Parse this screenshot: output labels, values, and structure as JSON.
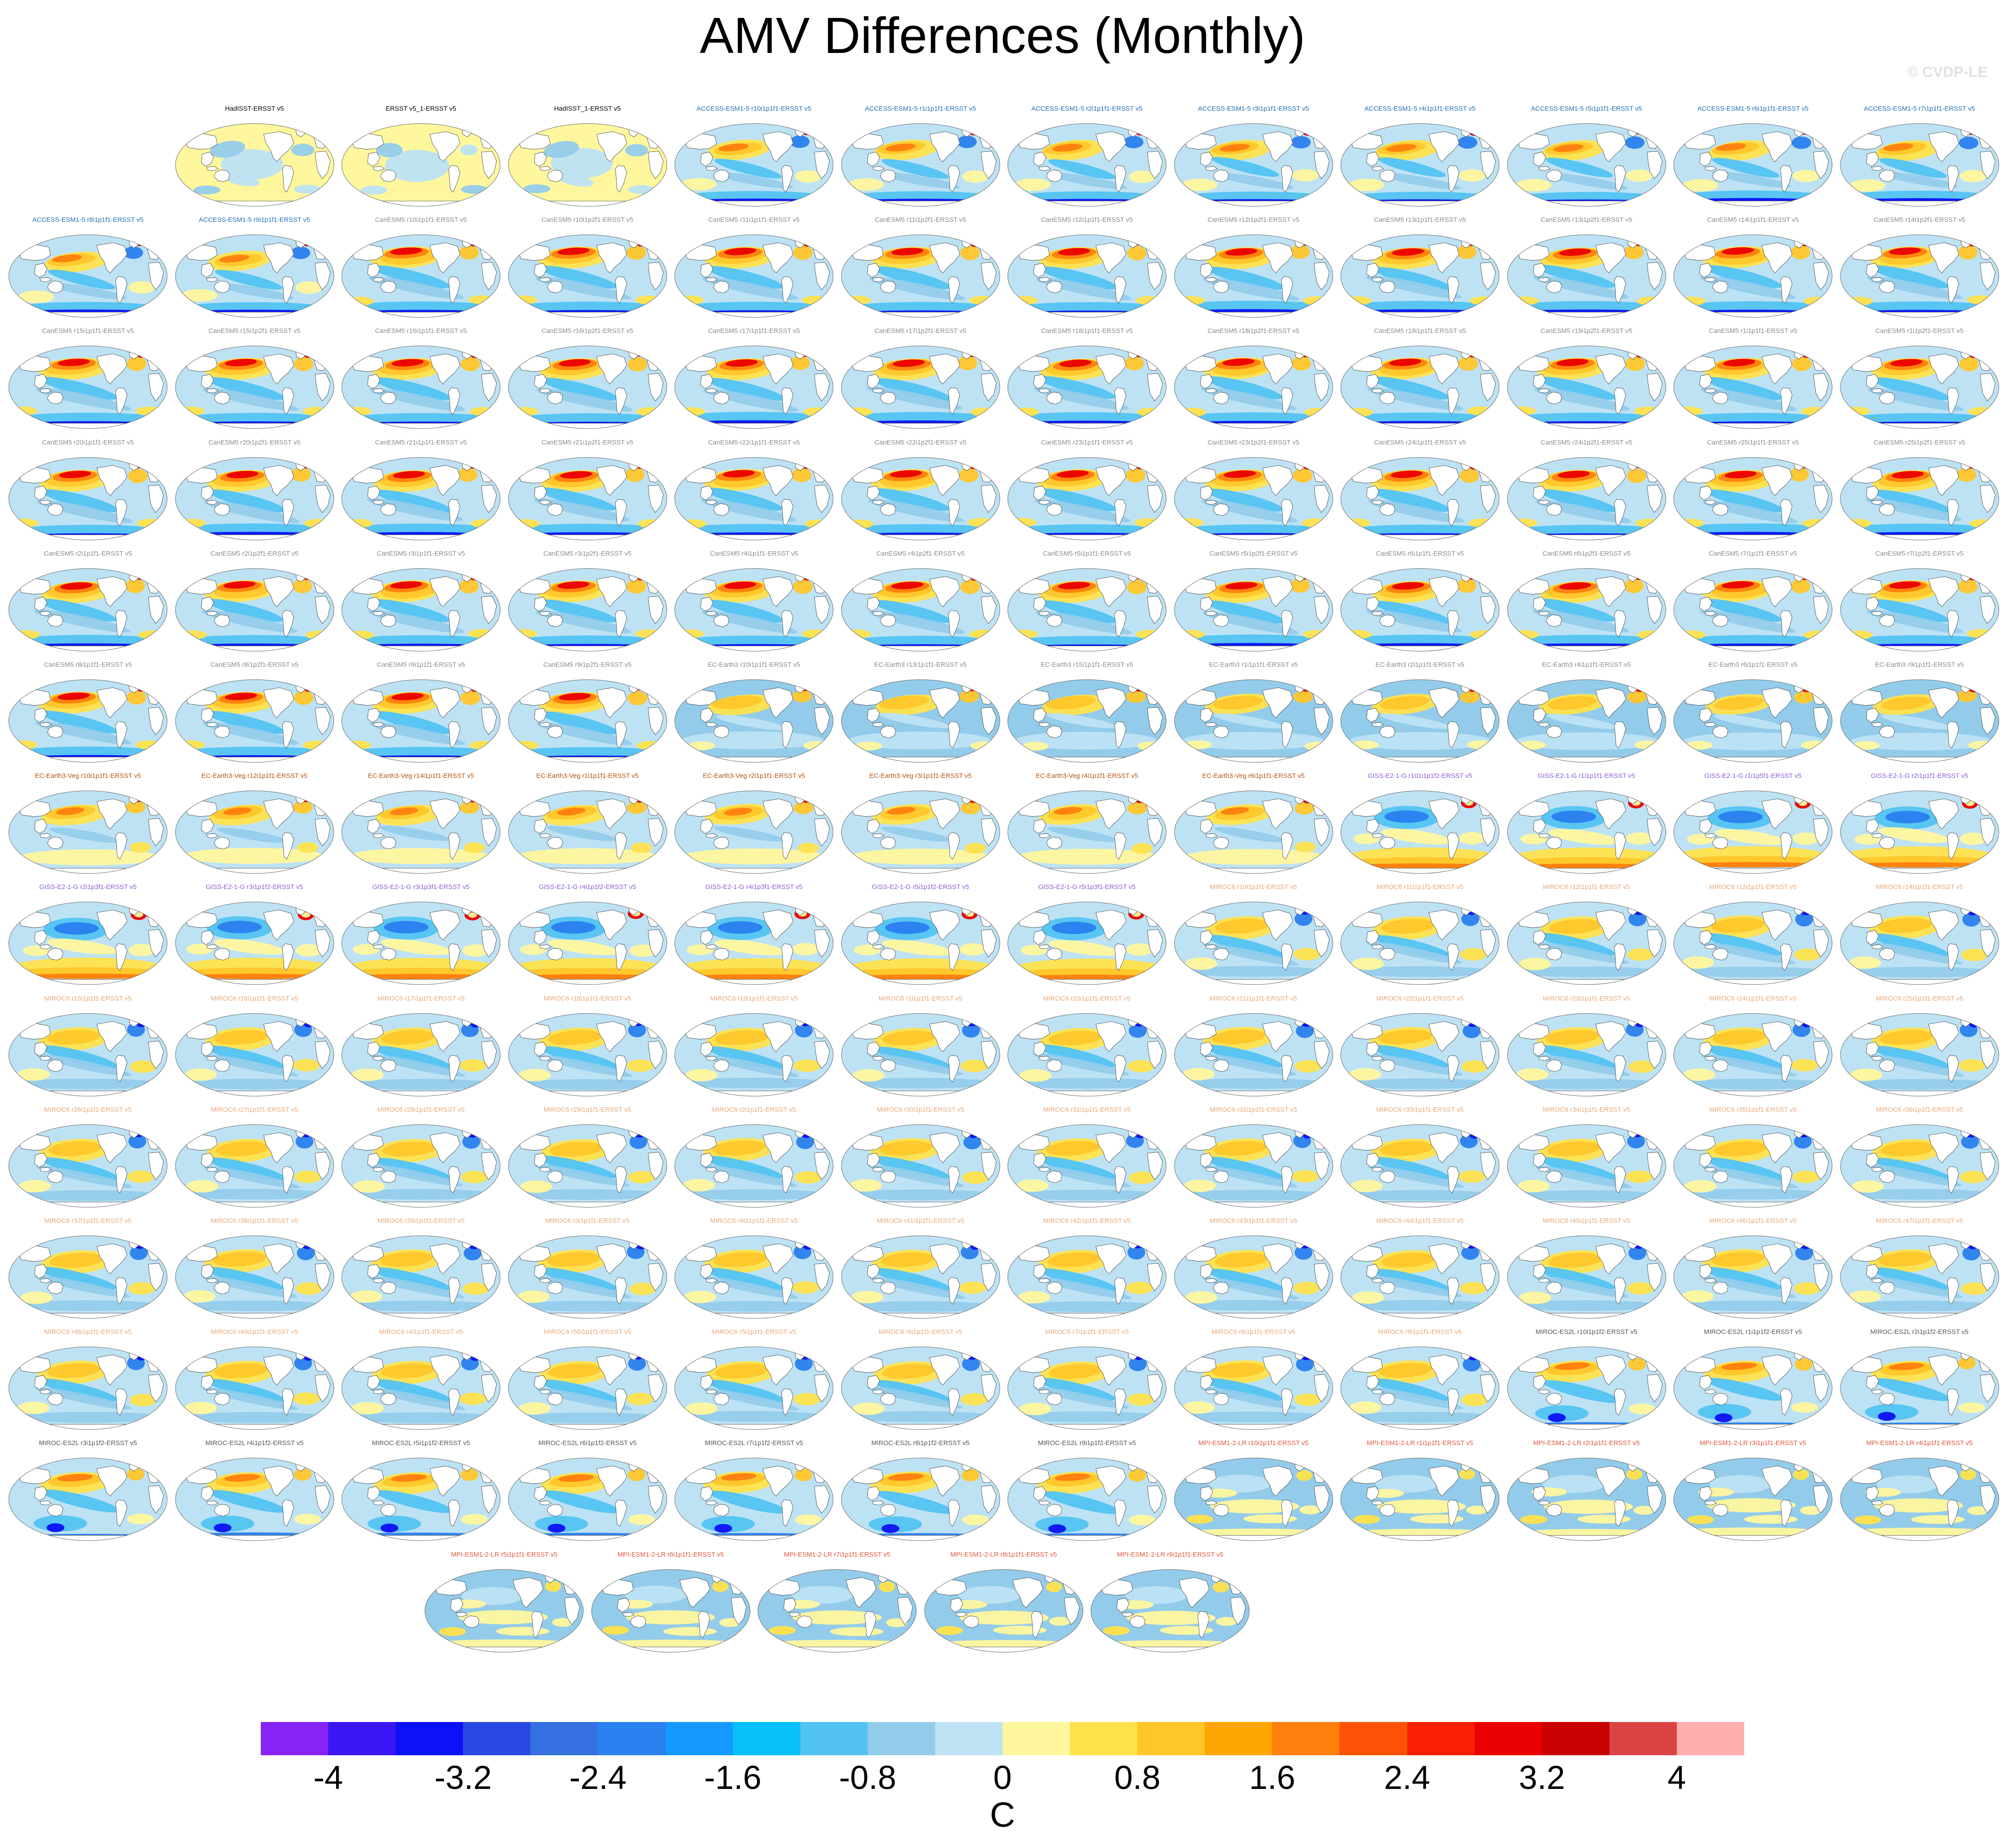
{
  "title": "AMV Differences (Monthly)",
  "watermark": "© CVDP-LE",
  "colorbar": {
    "unit": "C",
    "tick_labels": [
      "-4",
      "-3.2",
      "-2.4",
      "-1.6",
      "-0.8",
      "0",
      "0.8",
      "1.6",
      "2.4",
      "3.2",
      "4"
    ],
    "colors": [
      "#8624f5",
      "#3c17f5",
      "#0c11f7",
      "#2a48e4",
      "#3470e0",
      "#2a80ee",
      "#1599ff",
      "#08c0f9",
      "#52c3f2",
      "#93cceb",
      "#bde2f4",
      "#fff79e",
      "#ffe14c",
      "#ffc62a",
      "#ffa600",
      "#ff800d",
      "#fe5307",
      "#fa2007",
      "#ea0000",
      "#c90000",
      "#db4444",
      "#ffaeae"
    ]
  },
  "layout": {
    "columns": 12,
    "last_row_columns": [
      3,
      4,
      5,
      6,
      7
    ]
  },
  "pattern_colors": {
    "ocean_base": "#bde2f4",
    "warm1": "#fff79e",
    "warm2": "#ffe14c",
    "warm3": "#ffc62a",
    "warm4": "#ff800d",
    "hot": "#ea0000",
    "cool1": "#93cceb",
    "cool2": "#52c3f2",
    "cool3": "#2a80ee",
    "cool4": "#0c11f7",
    "land": "#ffffff",
    "coast": "#333333"
  },
  "panels": [
    {
      "label": "HadISST-ERSST v5",
      "color": "#000000",
      "pattern": "obs"
    },
    {
      "label": "ERSST v5_1-ERSST v5",
      "color": "#000000",
      "pattern": "obs2"
    },
    {
      "label": "HadISST_1-ERSST v5",
      "color": "#000000",
      "pattern": "obs"
    },
    {
      "label": "ACCESS-ESM1-5 r10i1p1f1-ERSST v5",
      "color": "#1f6fb4",
      "pattern": "access"
    },
    {
      "label": "ACCESS-ESM1-5 r1i1p1f1-ERSST v5",
      "color": "#1f6fb4",
      "pattern": "access"
    },
    {
      "label": "ACCESS-ESM1-5 r2i1p1f1-ERSST v5",
      "color": "#1f6fb4",
      "pattern": "access"
    },
    {
      "label": "ACCESS-ESM1-5 r3i1p1f1-ERSST v5",
      "color": "#1f6fb4",
      "pattern": "access"
    },
    {
      "label": "ACCESS-ESM1-5 r4i1p1f1-ERSST v5",
      "color": "#1f6fb4",
      "pattern": "access"
    },
    {
      "label": "ACCESS-ESM1-5 r5i1p1f1-ERSST v5",
      "color": "#1f6fb4",
      "pattern": "access"
    },
    {
      "label": "ACCESS-ESM1-5 r6i1p1f1-ERSST v5",
      "color": "#1f6fb4",
      "pattern": "access"
    },
    {
      "label": "ACCESS-ESM1-5 r7i1p1f1-ERSST v5",
      "color": "#1f6fb4",
      "pattern": "access"
    },
    {
      "label": "ACCESS-ESM1-5 r8i1p1f1-ERSST v5",
      "color": "#1f6fb4",
      "pattern": "access"
    },
    {
      "label": "ACCESS-ESM1-5 r9i1p1f1-ERSST v5",
      "color": "#1f6fb4",
      "pattern": "access"
    },
    {
      "label": "CanESM5 r10i1p1f1-ERSST v5",
      "color": "#8a8a8a",
      "pattern": "canesm"
    },
    {
      "label": "CanESM5 r10i1p2f1-ERSST v5",
      "color": "#8a8a8a",
      "pattern": "canesm"
    },
    {
      "label": "CanESM5 r11i1p1f1-ERSST v5",
      "color": "#8a8a8a",
      "pattern": "canesm"
    },
    {
      "label": "CanESM5 r11i1p2f1-ERSST v5",
      "color": "#8a8a8a",
      "pattern": "canesm"
    },
    {
      "label": "CanESM5 r12i1p1f1-ERSST v5",
      "color": "#8a8a8a",
      "pattern": "canesm"
    },
    {
      "label": "CanESM5 r12i1p2f1-ERSST v5",
      "color": "#8a8a8a",
      "pattern": "canesm"
    },
    {
      "label": "CanESM5 r13i1p1f1-ERSST v5",
      "color": "#8a8a8a",
      "pattern": "canesm"
    },
    {
      "label": "CanESM5 r13i1p2f1-ERSST v5",
      "color": "#8a8a8a",
      "pattern": "canesm"
    },
    {
      "label": "CanESM5 r14i1p1f1-ERSST v5",
      "color": "#8a8a8a",
      "pattern": "canesm"
    },
    {
      "label": "CanESM5 r14i1p2f1-ERSST v5",
      "color": "#8a8a8a",
      "pattern": "canesm"
    },
    {
      "label": "CanESM5 r15i1p1f1-ERSST v5",
      "color": "#8a8a8a",
      "pattern": "canesm"
    },
    {
      "label": "CanESM5 r15i1p2f1-ERSST v5",
      "color": "#8a8a8a",
      "pattern": "canesm"
    },
    {
      "label": "CanESM5 r16i1p1f1-ERSST v5",
      "color": "#8a8a8a",
      "pattern": "canesm"
    },
    {
      "label": "CanESM5 r16i1p2f1-ERSST v5",
      "color": "#8a8a8a",
      "pattern": "canesm"
    },
    {
      "label": "CanESM5 r17i1p1f1-ERSST v5",
      "color": "#8a8a8a",
      "pattern": "canesm"
    },
    {
      "label": "CanESM5 r17i1p2f1-ERSST v5",
      "color": "#8a8a8a",
      "pattern": "canesm"
    },
    {
      "label": "CanESM5 r18i1p1f1-ERSST v5",
      "color": "#8a8a8a",
      "pattern": "canesm"
    },
    {
      "label": "CanESM5 r18i1p2f1-ERSST v5",
      "color": "#8a8a8a",
      "pattern": "canesm"
    },
    {
      "label": "CanESM5 r19i1p1f1-ERSST v5",
      "color": "#8a8a8a",
      "pattern": "canesm"
    },
    {
      "label": "CanESM5 r19i1p2f1-ERSST v5",
      "color": "#8a8a8a",
      "pattern": "canesm"
    },
    {
      "label": "CanESM5 r1i1p1f1-ERSST v5",
      "color": "#8a8a8a",
      "pattern": "canesm"
    },
    {
      "label": "CanESM5 r1i1p2f1-ERSST v5",
      "color": "#8a8a8a",
      "pattern": "canesm"
    },
    {
      "label": "CanESM5 r20i1p1f1-ERSST v5",
      "color": "#8a8a8a",
      "pattern": "canesm"
    },
    {
      "label": "CanESM5 r20i1p2f1-ERSST v5",
      "color": "#8a8a8a",
      "pattern": "canesm"
    },
    {
      "label": "CanESM5 r21i1p1f1-ERSST v5",
      "color": "#8a8a8a",
      "pattern": "canesm"
    },
    {
      "label": "CanESM5 r21i1p2f1-ERSST v5",
      "color": "#8a8a8a",
      "pattern": "canesm"
    },
    {
      "label": "CanESM5 r22i1p1f1-ERSST v5",
      "color": "#8a8a8a",
      "pattern": "canesm"
    },
    {
      "label": "CanESM5 r22i1p2f1-ERSST v5",
      "color": "#8a8a8a",
      "pattern": "canesm"
    },
    {
      "label": "CanESM5 r23i1p1f1-ERSST v5",
      "color": "#8a8a8a",
      "pattern": "canesm"
    },
    {
      "label": "CanESM5 r23i1p2f1-ERSST v5",
      "color": "#8a8a8a",
      "pattern": "canesm"
    },
    {
      "label": "CanESM5 r24i1p1f1-ERSST v5",
      "color": "#8a8a8a",
      "pattern": "canesm"
    },
    {
      "label": "CanESM5 r24i1p2f1-ERSST v5",
      "color": "#8a8a8a",
      "pattern": "canesm"
    },
    {
      "label": "CanESM5 r25i1p1f1-ERSST v5",
      "color": "#8a8a8a",
      "pattern": "canesm"
    },
    {
      "label": "CanESM5 r25i1p2f1-ERSST v5",
      "color": "#8a8a8a",
      "pattern": "canesm"
    },
    {
      "label": "CanESM5 r2i1p1f1-ERSST v5",
      "color": "#8a8a8a",
      "pattern": "canesm"
    },
    {
      "label": "CanESM5 r2i1p2f1-ERSST v5",
      "color": "#8a8a8a",
      "pattern": "canesm"
    },
    {
      "label": "CanESM5 r3i1p1f1-ERSST v5",
      "color": "#8a8a8a",
      "pattern": "canesm"
    },
    {
      "label": "CanESM5 r3i1p2f1-ERSST v5",
      "color": "#8a8a8a",
      "pattern": "canesm"
    },
    {
      "label": "CanESM5 r4i1p1f1-ERSST v5",
      "color": "#8a8a8a",
      "pattern": "canesm"
    },
    {
      "label": "CanESM5 r4i1p2f1-ERSST v5",
      "color": "#8a8a8a",
      "pattern": "canesm"
    },
    {
      "label": "CanESM5 r5i1p1f1-ERSST v5",
      "color": "#8a8a8a",
      "pattern": "canesm"
    },
    {
      "label": "CanESM5 r5i1p2f1-ERSST v5",
      "color": "#8a8a8a",
      "pattern": "canesm"
    },
    {
      "label": "CanESM5 r6i1p1f1-ERSST v5",
      "color": "#8a8a8a",
      "pattern": "canesm"
    },
    {
      "label": "CanESM5 r6i1p2f1-ERSST v5",
      "color": "#8a8a8a",
      "pattern": "canesm"
    },
    {
      "label": "CanESM5 r7i1p1f1-ERSST v5",
      "color": "#8a8a8a",
      "pattern": "canesm"
    },
    {
      "label": "CanESM5 r7i1p2f1-ERSST v5",
      "color": "#8a8a8a",
      "pattern": "canesm"
    },
    {
      "label": "CanESM5 r8i1p1f1-ERSST v5",
      "color": "#8a8a8a",
      "pattern": "canesm"
    },
    {
      "label": "CanESM5 r8i1p2f1-ERSST v5",
      "color": "#8a8a8a",
      "pattern": "canesm"
    },
    {
      "label": "CanESM5 r9i1p1f1-ERSST v5",
      "color": "#8a8a8a",
      "pattern": "canesm"
    },
    {
      "label": "CanESM5 r9i1p2f1-ERSST v5",
      "color": "#8a8a8a",
      "pattern": "canesm"
    },
    {
      "label": "EC-Earth3 r10i1p1f1-ERSST v5",
      "color": "#8a8a8a",
      "pattern": "ecearth"
    },
    {
      "label": "EC-Earth3 r13i1p1f1-ERSST v5",
      "color": "#8a8a8a",
      "pattern": "ecearth"
    },
    {
      "label": "EC-Earth3 r15i1p1f1-ERSST v5",
      "color": "#8a8a8a",
      "pattern": "ecearth"
    },
    {
      "label": "EC-Earth3 r1i1p1f1-ERSST v5",
      "color": "#8a8a8a",
      "pattern": "ecearth"
    },
    {
      "label": "EC-Earth3 r2i1p1f1-ERSST v5",
      "color": "#8a8a8a",
      "pattern": "ecearth"
    },
    {
      "label": "EC-Earth3 r4i1p1f1-ERSST v5",
      "color": "#8a8a8a",
      "pattern": "ecearth"
    },
    {
      "label": "EC-Earth3 r6i1p1f1-ERSST v5",
      "color": "#8a8a8a",
      "pattern": "ecearth"
    },
    {
      "label": "EC-Earth3 r9i1p1f1-ERSST v5",
      "color": "#8a8a8a",
      "pattern": "ecearth"
    },
    {
      "label": "EC-Earth3-Veg r10i1p1f1-ERSST v5",
      "color": "#b5520d",
      "pattern": "ecveg"
    },
    {
      "label": "EC-Earth3-Veg r12i1p1f1-ERSST v5",
      "color": "#b5520d",
      "pattern": "ecveg"
    },
    {
      "label": "EC-Earth3-Veg r14i1p1f1-ERSST v5",
      "color": "#b5520d",
      "pattern": "ecveg"
    },
    {
      "label": "EC-Earth3-Veg r1i1p1f1-ERSST v5",
      "color": "#b5520d",
      "pattern": "ecveg"
    },
    {
      "label": "EC-Earth3-Veg r2i1p1f1-ERSST v5",
      "color": "#b5520d",
      "pattern": "ecveg"
    },
    {
      "label": "EC-Earth3-Veg r3i1p1f1-ERSST v5",
      "color": "#b5520d",
      "pattern": "ecveg"
    },
    {
      "label": "EC-Earth3-Veg r4i1p1f1-ERSST v5",
      "color": "#b5520d",
      "pattern": "ecveg"
    },
    {
      "label": "EC-Earth3-Veg r6i1p1f1-ERSST v5",
      "color": "#b5520d",
      "pattern": "ecveg"
    },
    {
      "label": "GISS-E2-1-G r101i1p1f2-ERSST v5",
      "color": "#8a5cd6",
      "pattern": "giss"
    },
    {
      "label": "GISS-E2-1-G r1i1p1f1-ERSST v5",
      "color": "#8a5cd6",
      "pattern": "giss"
    },
    {
      "label": "GISS-E2-1-G r1i1p5f1-ERSST v5",
      "color": "#8a5cd6",
      "pattern": "giss"
    },
    {
      "label": "GISS-E2-1-G r2i1p1f1-ERSST v5",
      "color": "#8a5cd6",
      "pattern": "giss"
    },
    {
      "label": "GISS-E2-1-G r2i1p3f1-ERSST v5",
      "color": "#8a5cd6",
      "pattern": "giss"
    },
    {
      "label": "GISS-E2-1-G r3i1p1f2-ERSST v5",
      "color": "#8a5cd6",
      "pattern": "giss"
    },
    {
      "label": "GISS-E2-1-G r3i1p3f1-ERSST v5",
      "color": "#8a5cd6",
      "pattern": "giss"
    },
    {
      "label": "GISS-E2-1-G r4i1p1f2-ERSST v5",
      "color": "#8a5cd6",
      "pattern": "giss"
    },
    {
      "label": "GISS-E2-1-G r4i1p3f1-ERSST v5",
      "color": "#8a5cd6",
      "pattern": "giss"
    },
    {
      "label": "GISS-E2-1-G r5i1p1f2-ERSST v5",
      "color": "#8a5cd6",
      "pattern": "giss"
    },
    {
      "label": "GISS-E2-1-G r5i1p3f1-ERSST v5",
      "color": "#8a5cd6",
      "pattern": "giss"
    },
    {
      "label": "MIROC6 r10i1p1f1-ERSST v5",
      "color": "#e8a878",
      "pattern": "miroc6"
    },
    {
      "label": "MIROC6 r11i1p1f1-ERSST v5",
      "color": "#e8a878",
      "pattern": "miroc6"
    },
    {
      "label": "MIROC6 r12i1p1f1-ERSST v5",
      "color": "#e8a878",
      "pattern": "miroc6"
    },
    {
      "label": "MIROC6 r13i1p1f1-ERSST v5",
      "color": "#e8a878",
      "pattern": "miroc6"
    },
    {
      "label": "MIROC6 r14i1p1f1-ERSST v5",
      "color": "#e8a878",
      "pattern": "miroc6"
    },
    {
      "label": "MIROC6 r15i1p1f1-ERSST v5",
      "color": "#e8a878",
      "pattern": "miroc6"
    },
    {
      "label": "MIROC6 r16i1p1f1-ERSST v5",
      "color": "#e8a878",
      "pattern": "miroc6"
    },
    {
      "label": "MIROC6 r17i1p1f1-ERSST v5",
      "color": "#e8a878",
      "pattern": "miroc6"
    },
    {
      "label": "MIROC6 r18i1p1f1-ERSST v5",
      "color": "#e8a878",
      "pattern": "miroc6"
    },
    {
      "label": "MIROC6 r19i1p1f1-ERSST v5",
      "color": "#e8a878",
      "pattern": "miroc6"
    },
    {
      "label": "MIROC6 r1i1p1f1-ERSST v5",
      "color": "#e8a878",
      "pattern": "miroc6"
    },
    {
      "label": "MIROC6 r20i1p1f1-ERSST v5",
      "color": "#e8a878",
      "pattern": "miroc6"
    },
    {
      "label": "MIROC6 r21i1p1f1-ERSST v5",
      "color": "#e8a878",
      "pattern": "miroc6"
    },
    {
      "label": "MIROC6 r22i1p1f1-ERSST v5",
      "color": "#e8a878",
      "pattern": "miroc6"
    },
    {
      "label": "MIROC6 r23i1p1f1-ERSST v5",
      "color": "#e8a878",
      "pattern": "miroc6"
    },
    {
      "label": "MIROC6 r24i1p1f1-ERSST v5",
      "color": "#e8a878",
      "pattern": "miroc6"
    },
    {
      "label": "MIROC6 r25i1p1f1-ERSST v5",
      "color": "#e8a878",
      "pattern": "miroc6"
    },
    {
      "label": "MIROC6 r26i1p1f1-ERSST v5",
      "color": "#e8a878",
      "pattern": "miroc6"
    },
    {
      "label": "MIROC6 r27i1p1f1-ERSST v5",
      "color": "#e8a878",
      "pattern": "miroc6"
    },
    {
      "label": "MIROC6 r28i1p1f1-ERSST v5",
      "color": "#e8a878",
      "pattern": "miroc6"
    },
    {
      "label": "MIROC6 r29i1p1f1-ERSST v5",
      "color": "#e8a878",
      "pattern": "miroc6"
    },
    {
      "label": "MIROC6 r2i1p1f1-ERSST v5",
      "color": "#e8a878",
      "pattern": "miroc6"
    },
    {
      "label": "MIROC6 r30i1p1f1-ERSST v5",
      "color": "#e8a878",
      "pattern": "miroc6"
    },
    {
      "label": "MIROC6 r31i1p1f1-ERSST v5",
      "color": "#e8a878",
      "pattern": "miroc6"
    },
    {
      "label": "MIROC6 r32i1p1f1-ERSST v5",
      "color": "#e8a878",
      "pattern": "miroc6"
    },
    {
      "label": "MIROC6 r33i1p1f1-ERSST v5",
      "color": "#e8a878",
      "pattern": "miroc6"
    },
    {
      "label": "MIROC6 r34i1p1f1-ERSST v5",
      "color": "#e8a878",
      "pattern": "miroc6"
    },
    {
      "label": "MIROC6 r35i1p1f1-ERSST v5",
      "color": "#e8a878",
      "pattern": "miroc6"
    },
    {
      "label": "MIROC6 r36i1p1f1-ERSST v5",
      "color": "#e8a878",
      "pattern": "miroc6"
    },
    {
      "label": "MIROC6 r37i1p1f1-ERSST v5",
      "color": "#e8a878",
      "pattern": "miroc6"
    },
    {
      "label": "MIROC6 r38i1p1f1-ERSST v5",
      "color": "#e8a878",
      "pattern": "miroc6"
    },
    {
      "label": "MIROC6 r39i1p1f1-ERSST v5",
      "color": "#e8a878",
      "pattern": "miroc6"
    },
    {
      "label": "MIROC6 r3i1p1f1-ERSST v5",
      "color": "#e8a878",
      "pattern": "miroc6"
    },
    {
      "label": "MIROC6 r40i1p1f1-ERSST v5",
      "color": "#e8a878",
      "pattern": "miroc6"
    },
    {
      "label": "MIROC6 r41i1p1f1-ERSST v5",
      "color": "#e8a878",
      "pattern": "miroc6"
    },
    {
      "label": "MIROC6 r42i1p1f1-ERSST v5",
      "color": "#e8a878",
      "pattern": "miroc6"
    },
    {
      "label": "MIROC6 r43i1p1f1-ERSST v5",
      "color": "#e8a878",
      "pattern": "miroc6"
    },
    {
      "label": "MIROC6 r44i1p1f1-ERSST v5",
      "color": "#e8a878",
      "pattern": "miroc6"
    },
    {
      "label": "MIROC6 r45i1p1f1-ERSST v5",
      "color": "#e8a878",
      "pattern": "miroc6"
    },
    {
      "label": "MIROC6 r46i1p1f1-ERSST v5",
      "color": "#e8a878",
      "pattern": "miroc6"
    },
    {
      "label": "MIROC6 r47i1p1f1-ERSST v5",
      "color": "#e8a878",
      "pattern": "miroc6"
    },
    {
      "label": "MIROC6 r48i1p1f1-ERSST v5",
      "color": "#e8a878",
      "pattern": "miroc6"
    },
    {
      "label": "MIROC6 r49i1p1f1-ERSST v5",
      "color": "#e8a878",
      "pattern": "miroc6"
    },
    {
      "label": "MIROC6 r4i1p1f1-ERSST v5",
      "color": "#e8a878",
      "pattern": "miroc6"
    },
    {
      "label": "MIROC6 r50i1p1f1-ERSST v5",
      "color": "#e8a878",
      "pattern": "miroc6"
    },
    {
      "label": "MIROC6 r5i1p1f1-ERSST v5",
      "color": "#e8a878",
      "pattern": "miroc6"
    },
    {
      "label": "MIROC6 r6i1p1f1-ERSST v5",
      "color": "#e8a878",
      "pattern": "miroc6"
    },
    {
      "label": "MIROC6 r7i1p1f1-ERSST v5",
      "color": "#e8a878",
      "pattern": "miroc6"
    },
    {
      "label": "MIROC6 r8i1p1f1-ERSST v5",
      "color": "#e8a878",
      "pattern": "miroc6"
    },
    {
      "label": "MIROC6 r9i1p1f1-ERSST v5",
      "color": "#e8a878",
      "pattern": "miroc6"
    },
    {
      "label": "MIROC-ES2L r10i1p1f2-ERSST v5",
      "color": "#555555",
      "pattern": "mirocesl"
    },
    {
      "label": "MIROC-ES2L r1i1p1f2-ERSST v5",
      "color": "#555555",
      "pattern": "mirocesl"
    },
    {
      "label": "MIROC-ES2L r2i1p1f2-ERSST v5",
      "color": "#555555",
      "pattern": "mirocesl"
    },
    {
      "label": "MIROC-ES2L r3i1p1f2-ERSST v5",
      "color": "#555555",
      "pattern": "mirocesl"
    },
    {
      "label": "MIROC-ES2L r4i1p1f2-ERSST v5",
      "color": "#555555",
      "pattern": "mirocesl"
    },
    {
      "label": "MIROC-ES2L r5i1p1f2-ERSST v5",
      "color": "#555555",
      "pattern": "mirocesl"
    },
    {
      "label": "MIROC-ES2L r6i1p1f2-ERSST v5",
      "color": "#555555",
      "pattern": "mirocesl"
    },
    {
      "label": "MIROC-ES2L r7i1p1f2-ERSST v5",
      "color": "#555555",
      "pattern": "mirocesl"
    },
    {
      "label": "MIROC-ES2L r8i1p1f2-ERSST v5",
      "color": "#555555",
      "pattern": "mirocesl"
    },
    {
      "label": "MIROC-ES2L r9i1p1f2-ERSST v5",
      "color": "#555555",
      "pattern": "mirocesl"
    },
    {
      "label": "MPI-ESM1-2-LR r10i1p1f1-ERSST v5",
      "color": "#e0553a",
      "pattern": "mpi"
    },
    {
      "label": "MPI-ESM1-2-LR r1i1p1f1-ERSST v5",
      "color": "#e0553a",
      "pattern": "mpi"
    },
    {
      "label": "MPI-ESM1-2-LR r2i1p1f1-ERSST v5",
      "color": "#e0553a",
      "pattern": "mpi"
    },
    {
      "label": "MPI-ESM1-2-LR r3i1p1f1-ERSST v5",
      "color": "#e0553a",
      "pattern": "mpi"
    },
    {
      "label": "MPI-ESM1-2-LR r4i1p1f1-ERSST v5",
      "color": "#e0553a",
      "pattern": "mpi"
    },
    {
      "label": "MPI-ESM1-2-LR r5i1p1f1-ERSST v5",
      "color": "#e0553a",
      "pattern": "mpi"
    },
    {
      "label": "MPI-ESM1-2-LR r6i1p1f1-ERSST v5",
      "color": "#e0553a",
      "pattern": "mpi"
    },
    {
      "label": "MPI-ESM1-2-LR r7i1p1f1-ERSST v5",
      "color": "#e0553a",
      "pattern": "mpi"
    },
    {
      "label": "MPI-ESM1-2-LR r8i1p1f1-ERSST v5",
      "color": "#e0553a",
      "pattern": "mpi"
    },
    {
      "label": "MPI-ESM1-2-LR r9i1p1f1-ERSST v5",
      "color": "#e0553a",
      "pattern": "mpi"
    }
  ]
}
